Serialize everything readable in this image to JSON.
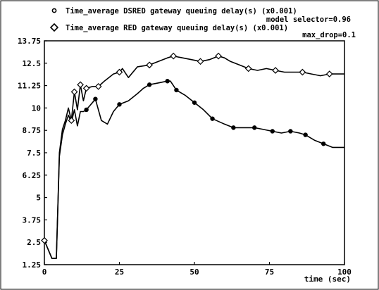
{
  "chart_data": {
    "type": "line",
    "legend": [
      {
        "marker": "circle",
        "label": "Time_average DSRED gateway queuing delay(s) (x0.001)"
      },
      {
        "marker": "diamond",
        "label": "Time_average RED gateway queuing delay(s) (x0.001)"
      }
    ],
    "annotations": [
      "model selector=0.96",
      "max_drop=0.1"
    ],
    "xlabel": "time (sec)",
    "xlim": [
      0,
      100
    ],
    "ylim": [
      1.25,
      13.75
    ],
    "x_ticks": [
      "0",
      "25",
      "50",
      "75",
      "100"
    ],
    "y_ticks": [
      "13.75",
      "12.5",
      "11.25",
      "10",
      "8.75",
      "7.5",
      "6.25",
      "5",
      "3.75",
      "2.5",
      "1.25"
    ],
    "grid": false,
    "series": [
      {
        "name": "Time_average DSRED gateway queuing delay(s) (x0.001)",
        "marker": "circle",
        "x": [
          0,
          2.5,
          4,
          5,
          6,
          7,
          8,
          9,
          10,
          11,
          12,
          13,
          14,
          16,
          17,
          19,
          21,
          23,
          25,
          28,
          31,
          33,
          35,
          38,
          41,
          42,
          44,
          47,
          50,
          53,
          56,
          60,
          63,
          66,
          70,
          73,
          76,
          79,
          82,
          85,
          87,
          90,
          93,
          96,
          100
        ],
        "y": [
          2.6,
          1.6,
          1.6,
          7.3,
          8.5,
          9.1,
          9.6,
          9.2,
          9.9,
          9.0,
          9.8,
          9.8,
          9.9,
          10.3,
          10.5,
          9.3,
          9.1,
          9.8,
          10.2,
          10.4,
          10.8,
          11.1,
          11.3,
          11.4,
          11.5,
          11.5,
          11.0,
          10.7,
          10.3,
          9.9,
          9.4,
          9.1,
          8.9,
          8.9,
          8.9,
          8.8,
          8.7,
          8.6,
          8.7,
          8.6,
          8.5,
          8.2,
          8.0,
          7.8,
          7.8
        ]
      },
      {
        "name": "Time_average RED gateway queuing delay(s) (x0.001)",
        "marker": "diamond",
        "x": [
          0,
          2.5,
          4,
          5,
          6,
          7,
          8,
          9,
          10,
          11,
          12,
          13,
          14,
          16,
          18,
          20,
          23,
          25,
          26,
          28,
          31,
          35,
          38,
          41,
          43,
          46,
          49,
          52,
          55,
          58,
          60,
          62,
          65,
          68,
          71,
          74,
          77,
          80,
          83,
          86,
          89,
          92,
          95,
          100
        ],
        "y": [
          2.6,
          1.6,
          1.6,
          7.5,
          8.8,
          9.3,
          10.0,
          9.3,
          10.9,
          9.9,
          11.3,
          10.4,
          11.1,
          11.2,
          11.2,
          11.5,
          11.9,
          12.0,
          12.2,
          11.7,
          12.3,
          12.4,
          12.6,
          12.8,
          12.9,
          12.8,
          12.7,
          12.6,
          12.7,
          12.9,
          12.8,
          12.6,
          12.4,
          12.2,
          12.1,
          12.2,
          12.1,
          12.0,
          12.0,
          12.0,
          11.9,
          11.8,
          11.9,
          11.9
        ]
      }
    ],
    "marker_points": [
      {
        "x": [
          0,
          14,
          17,
          25,
          35,
          41,
          44,
          50,
          56,
          63,
          70,
          76,
          82,
          87,
          93
        ],
        "y": [
          2.6,
          9.9,
          10.5,
          10.2,
          11.3,
          11.5,
          11.0,
          10.3,
          9.4,
          8.9,
          8.9,
          8.7,
          8.7,
          8.5,
          8.0
        ]
      },
      {
        "x": [
          0,
          9,
          10,
          12,
          14,
          18,
          25,
          35,
          43,
          52,
          58,
          68,
          77,
          86,
          95
        ],
        "y": [
          2.6,
          9.3,
          10.9,
          11.3,
          11.1,
          11.2,
          12.0,
          12.4,
          12.9,
          12.6,
          12.9,
          12.2,
          12.1,
          12.0,
          11.9
        ]
      }
    ]
  }
}
